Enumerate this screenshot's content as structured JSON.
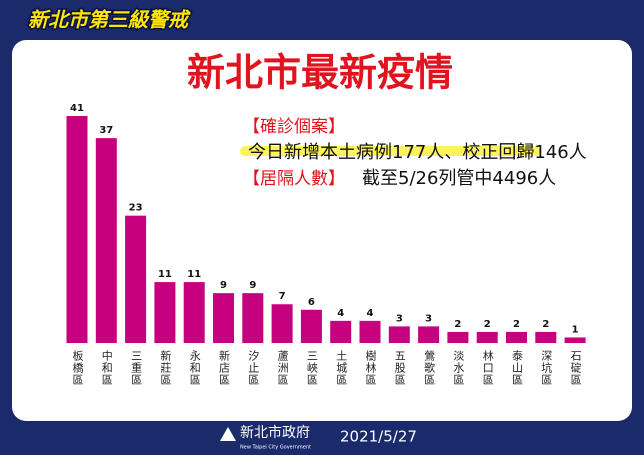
{
  "header": {
    "alert": "新北市第三級警戒",
    "title": "新北市最新疫情"
  },
  "notes": [
    {
      "label": "【確診個案】",
      "text": "今日新增本土病例177人、校正回歸146人"
    },
    {
      "label": "【居隔人數】",
      "text": "截至5/26列管中4496人"
    }
  ],
  "chart_data": {
    "type": "bar",
    "categories": [
      "板橋區",
      "中和區",
      "三重區",
      "新莊區",
      "永和區",
      "新店區",
      "汐止區",
      "蘆洲區",
      "三峽區",
      "土城區",
      "樹林區",
      "五股區",
      "鶯歌區",
      "淡水區",
      "林口區",
      "泰山區",
      "深坑區",
      "石碇區"
    ],
    "values": [
      41,
      37,
      23,
      11,
      11,
      9,
      9,
      7,
      6,
      4,
      4,
      3,
      3,
      2,
      2,
      2,
      2,
      1
    ],
    "color": "#c6007e"
  },
  "footer": {
    "org": "新北市政府",
    "org_en": "New Taipei City Government",
    "date": "2021/5/27"
  }
}
